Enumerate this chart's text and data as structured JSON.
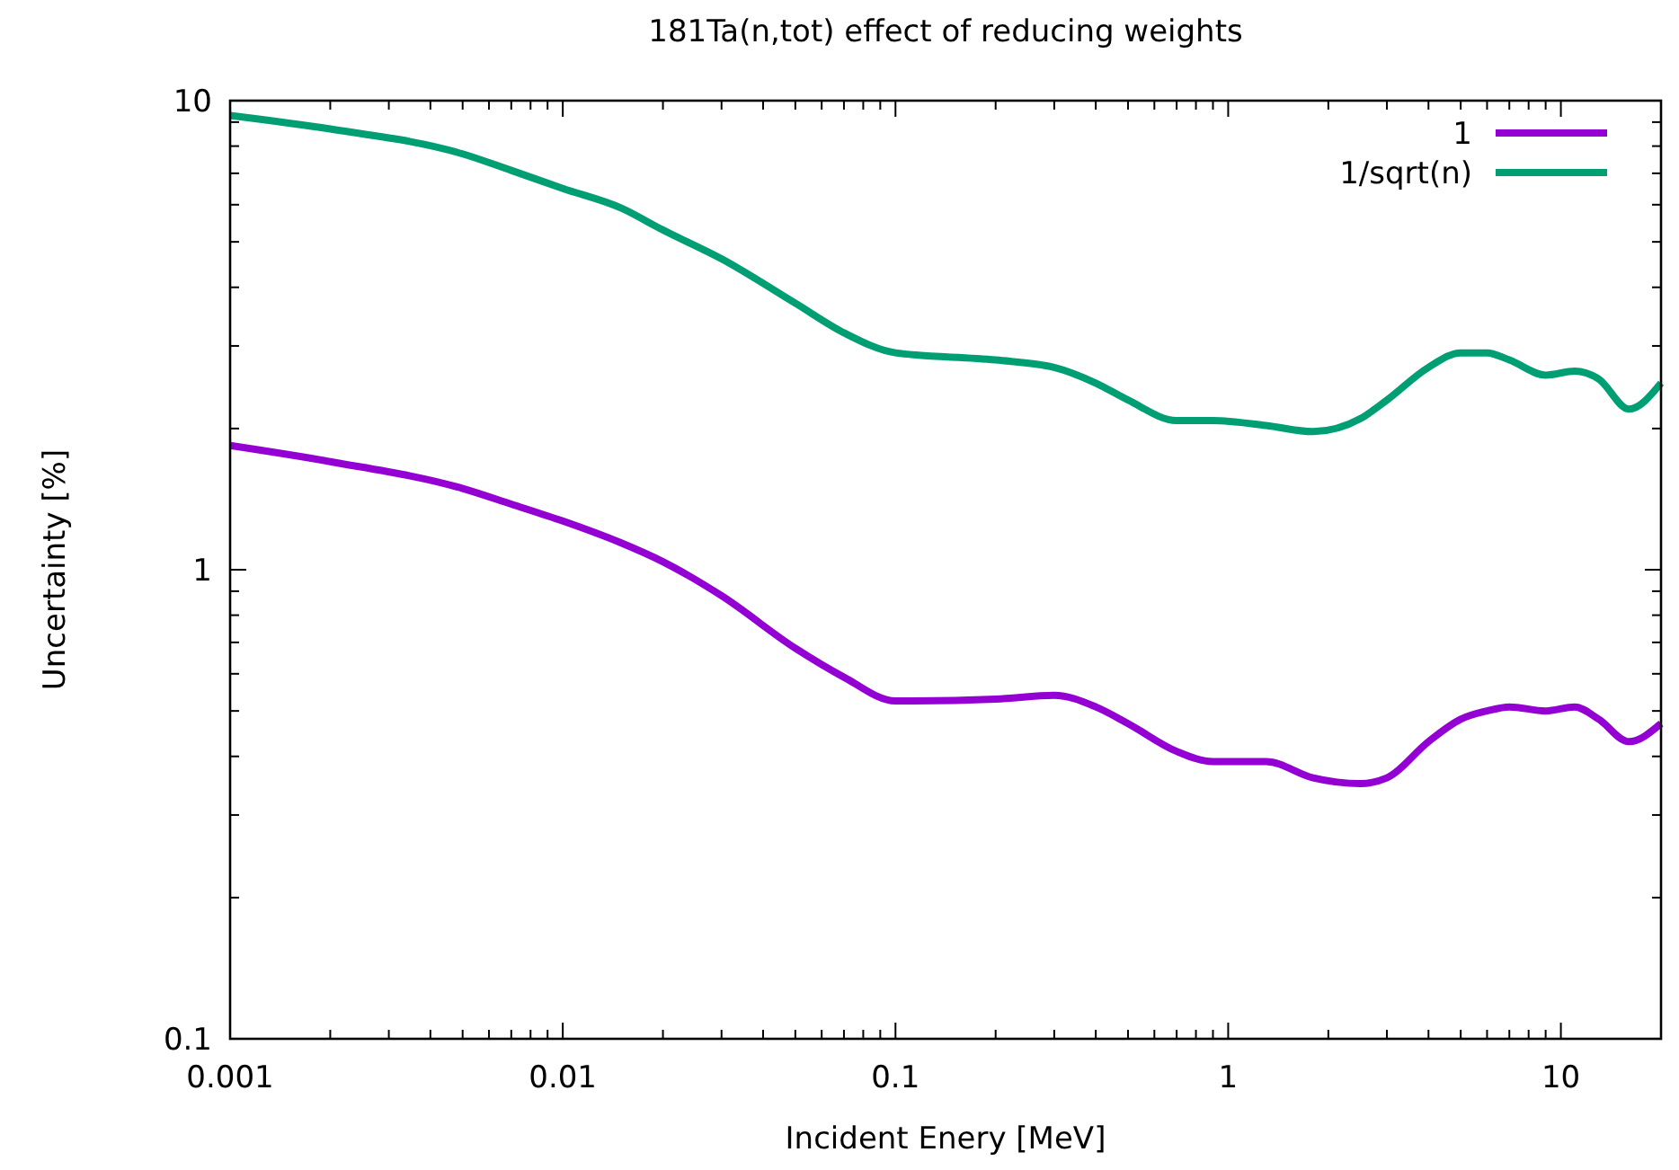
{
  "chart_data": {
    "type": "line",
    "title": "181Ta(n,tot) effect of reducing weights",
    "xlabel": "Incident Enery [MeV]",
    "ylabel": "Uncertainty [%]",
    "log": "xy",
    "xlim": [
      0.001,
      20
    ],
    "xticks": [
      {
        "value": 0.001,
        "label": "0.001"
      },
      {
        "value": 0.01,
        "label": "0.01"
      },
      {
        "value": 0.1,
        "label": "0.1"
      },
      1,
      10
    ],
    "ylim": [
      0.1,
      10
    ],
    "yticks": [
      {
        "value": 0.1,
        "label": "0.1"
      },
      1,
      10
    ],
    "legend": "top right",
    "grid": false,
    "line_style": "solid",
    "marker": "none",
    "x": [
      0.001,
      0.002,
      0.005,
      0.007,
      0.01,
      0.015,
      0.02,
      0.03,
      0.05,
      0.07,
      0.1,
      0.2,
      0.3,
      0.4,
      0.5,
      0.7,
      0.9,
      1.3,
      1.8,
      2.5,
      3,
      4,
      5,
      6,
      7,
      9,
      11,
      13,
      16,
      20
    ],
    "series": [
      {
        "name": "1",
        "color": "#9400d3",
        "values": [
          1.84,
          1.7,
          1.49,
          1.38,
          1.27,
          1.14,
          1.04,
          0.88,
          0.68,
          0.59,
          0.525,
          0.53,
          0.54,
          0.51,
          0.47,
          0.41,
          0.39,
          0.39,
          0.36,
          0.35,
          0.36,
          0.43,
          0.48,
          0.5,
          0.51,
          0.5,
          0.51,
          0.48,
          0.43,
          0.47
        ]
      },
      {
        "name": "1/sqrt(n)",
        "color": "#009e73",
        "values": [
          9.3,
          8.7,
          7.7,
          7.1,
          6.5,
          5.9,
          5.3,
          4.6,
          3.7,
          3.2,
          2.9,
          2.8,
          2.7,
          2.5,
          2.3,
          2.08,
          2.08,
          2.03,
          1.97,
          2.1,
          2.3,
          2.7,
          2.9,
          2.9,
          2.8,
          2.6,
          2.65,
          2.55,
          2.2,
          2.5
        ]
      }
    ]
  }
}
